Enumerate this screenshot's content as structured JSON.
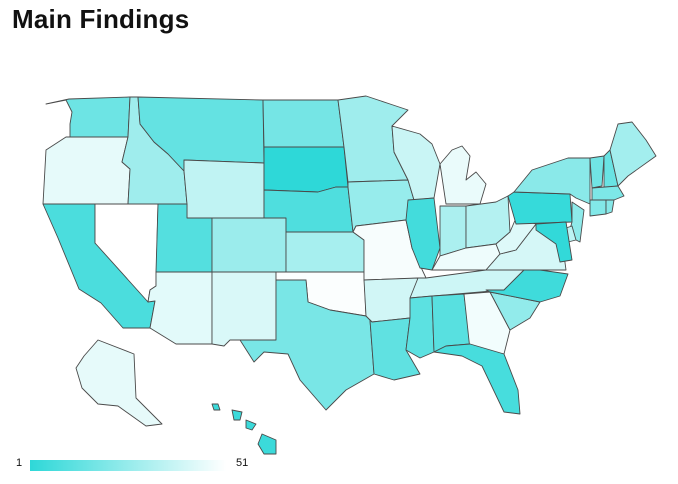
{
  "title": "Main Findings",
  "legend": {
    "min_label": "1",
    "max_label": "51",
    "color_min": "#2ed8d8",
    "color_max": "#ffffff"
  },
  "map_data": {
    "type": "choropleth",
    "region": "United States",
    "states": {
      "WA": 16,
      "OR": 45,
      "CA": 8,
      "NV": 51,
      "ID": 28,
      "MT": 14,
      "WY": 36,
      "UT": 10,
      "AZ": 44,
      "CO": 27,
      "NM": 42,
      "ND": 18,
      "SD": 1,
      "NE": 9,
      "KS": 30,
      "OK": 50,
      "TX": 19,
      "MN": 28,
      "IA": 26,
      "MO": 49,
      "AR": 40,
      "LA": 13,
      "WI": 38,
      "IL": 6,
      "MI": 46,
      "IN": 31,
      "OH": 33,
      "KY": 47,
      "TN": 39,
      "MS": 12,
      "AL": 11,
      "GA": 48,
      "FL": 7,
      "SC": 25,
      "NC": 5,
      "VA": 41,
      "WV": 43,
      "PA": 3,
      "NY": 23,
      "VT": 17,
      "NH": 15,
      "ME": 29,
      "MA": 20,
      "RI": 22,
      "CT": 21,
      "NJ": 24,
      "DE": 35,
      "MD": 2,
      "AK": 45,
      "HI": 4
    }
  }
}
